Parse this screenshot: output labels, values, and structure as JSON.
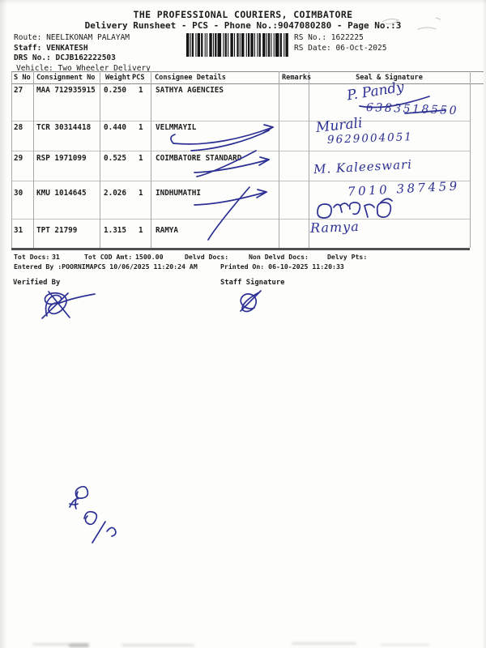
{
  "page": {
    "ink_color": "#2c3094",
    "paper_color": "#fdfdfb",
    "text_color": "#1c1c1c"
  },
  "header": {
    "title": "THE PROFESSIONAL COURIERS, COIMBATORE",
    "subtitle": "Delivery Runsheet - PCS - Phone No.:9047080280 - Page No.:3",
    "route_label": "Route:",
    "route_value": "NEELIKONAM PALAYAM",
    "staff_label": "Staff:",
    "staff_value": "VENKATESH",
    "drs_label": "DRS No.:",
    "drs_value": "DCJB162222503",
    "vehicle_label": "Vehicle:",
    "vehicle_value": "Two Wheeler Delivery",
    "rs_no_label": "RS No.:",
    "rs_no_value": "1622225",
    "rs_date_label": "RS Date:",
    "rs_date_value": "06-Oct-2025"
  },
  "barcode": {
    "pattern": [
      3,
      1,
      1,
      1,
      2,
      2,
      1,
      1,
      3,
      1,
      2,
      2,
      1,
      1,
      1,
      2,
      3,
      1,
      1,
      1,
      2,
      1,
      4,
      2,
      1,
      1,
      2,
      1,
      1,
      2,
      3,
      1,
      1,
      2,
      2,
      1,
      1,
      1,
      3,
      2,
      1,
      1,
      2,
      1,
      3,
      1,
      1,
      2,
      1,
      1,
      2,
      2,
      3,
      1,
      1,
      1,
      2,
      1,
      1,
      2,
      1,
      1,
      4,
      1,
      2,
      2,
      1,
      1,
      3,
      1
    ]
  },
  "table": {
    "headers": {
      "s_no": "S No",
      "consignment": "Consignment No",
      "weight": "Weight",
      "pcs": "PCS",
      "consignee": "Consignee Details",
      "remarks": "Remarks",
      "seal": "Seal & Signature"
    },
    "rows": [
      {
        "s_no": "27",
        "consignment": "MAA 712935915",
        "weight": "0.250",
        "pcs": "1",
        "consignee": "SATHYA AGENCIES",
        "remarks": ""
      },
      {
        "s_no": "28",
        "consignment": "TCR 30314418",
        "weight": "0.440",
        "pcs": "1",
        "consignee": "VELMMAYIL",
        "remarks": ""
      },
      {
        "s_no": "29",
        "consignment": "RSP 1971099",
        "weight": "0.525",
        "pcs": "1",
        "consignee": "COIMBATORE STANDARD",
        "remarks": ""
      },
      {
        "s_no": "30",
        "consignment": "KMU 1014645",
        "weight": "2.026",
        "pcs": "1",
        "consignee": "INDHUMATHI",
        "remarks": ""
      },
      {
        "s_no": "31",
        "consignment": "TPT 21799",
        "weight": "1.315",
        "pcs": "1",
        "consignee": "RAMYA",
        "remarks": ""
      }
    ]
  },
  "handwriting": {
    "row27_sign": "P. Pandy",
    "row27_phone": "6383518550",
    "row28_sign": "Murali",
    "row28_phone": "9629004051",
    "row29_sign": "M. Kaleeswari",
    "row30_phone": "7010 387459",
    "row30_tamil": "இந்துமதி",
    "row31_sign": "Ramya",
    "corner_note": "48 6/9"
  },
  "footer": {
    "tot_docs_label": "Tot Docs:",
    "tot_docs_value": "31",
    "tot_cod_label": "Tot COD Amt:",
    "tot_cod_value": "1500.00",
    "delvd_label": "Delvd Docs:",
    "non_delvd_label": "Non Delvd Docs:",
    "delvy_label": "Delvy Pts:",
    "entered_by": "Entered By :POORNIMAPCS 10/06/2025 11:20:24 AM",
    "printed_on": "Printed On: 06-10-2025 11:20:33",
    "verified_by_label": "Verified By",
    "staff_signature_label": "Staff Signature"
  }
}
